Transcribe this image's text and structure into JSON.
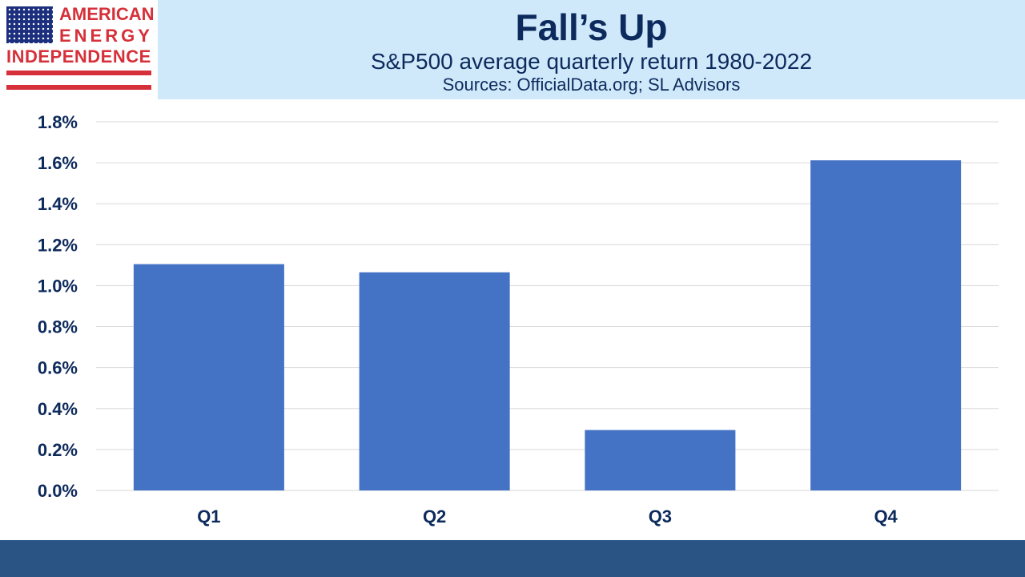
{
  "logo": {
    "line1": "AMERICAN",
    "line2": "ENERGY",
    "line3": "INDEPENDENCE",
    "trademark": "™"
  },
  "colors": {
    "header_bg": "#cfe9fb",
    "bar": "#4472c4",
    "text": "#0d2a5c",
    "footer": "#2a5484",
    "logo_red": "#d6303a"
  },
  "chart_data": {
    "type": "bar",
    "title": "Fall’s Up",
    "subtitle": "S&P500 average quarterly return 1980-2022",
    "source": "Sources: OfficialData.org; SL Advisors",
    "categories": [
      "Q1",
      "Q2",
      "Q3",
      "Q4"
    ],
    "values": [
      1.105,
      1.065,
      0.295,
      1.612
    ],
    "unit": "%",
    "ylim": [
      0,
      1.8
    ],
    "yticks": [
      "0.0%",
      "0.2%",
      "0.4%",
      "0.6%",
      "0.8%",
      "1.0%",
      "1.2%",
      "1.4%",
      "1.6%",
      "1.8%"
    ],
    "ytick_values": [
      0,
      0.2,
      0.4,
      0.6,
      0.8,
      1.0,
      1.2,
      1.4,
      1.6,
      1.8
    ],
    "grid": true,
    "legend": "none"
  }
}
